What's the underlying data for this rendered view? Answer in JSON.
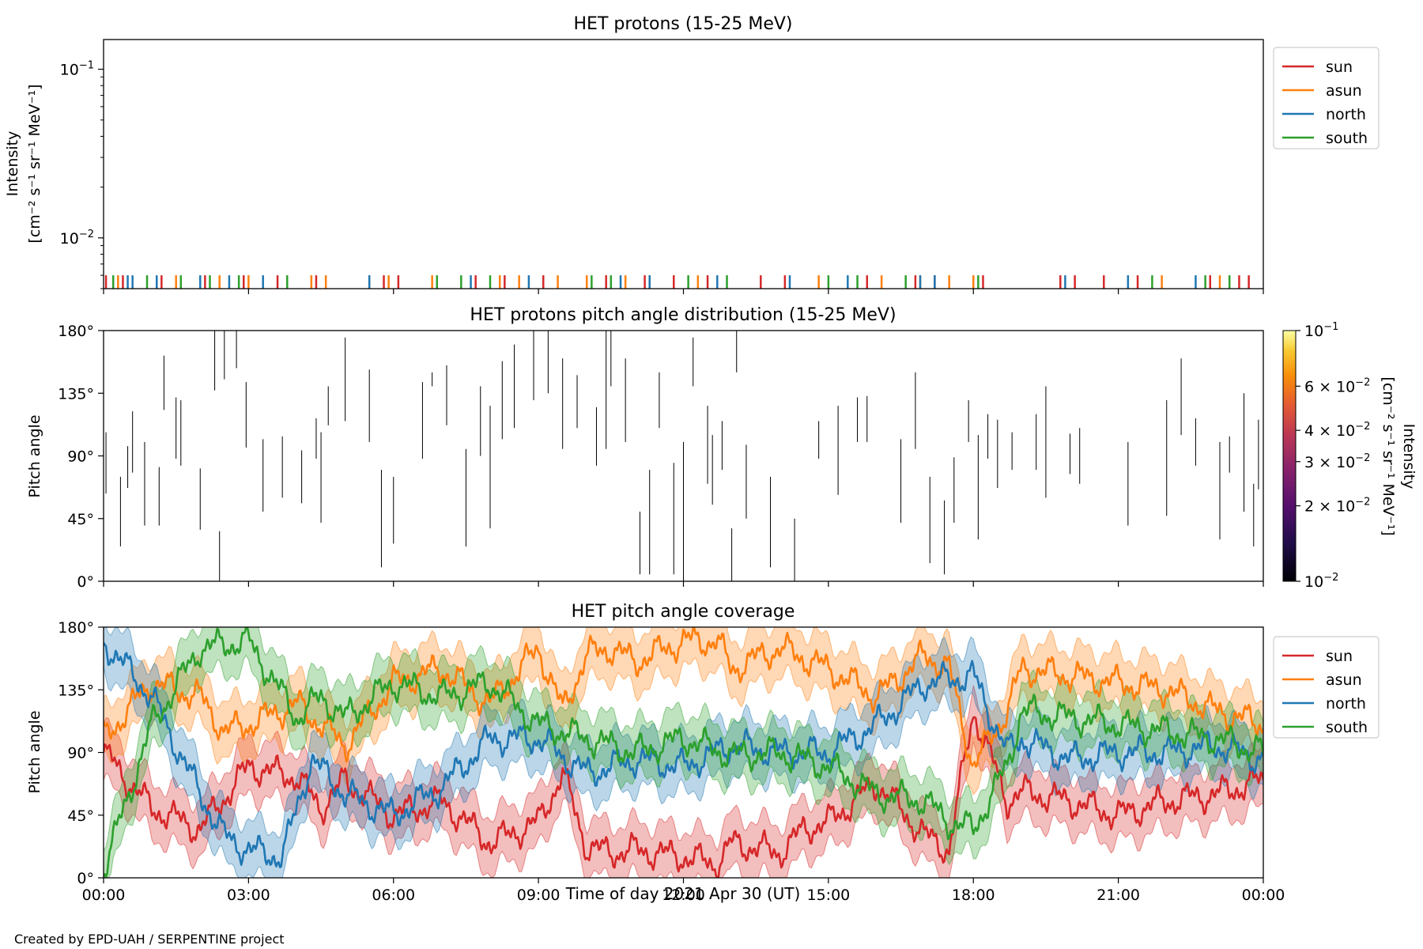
{
  "footer_credit": "Created by EPD-UAH / SERPENTINE project",
  "colors": {
    "sun": "#d62728",
    "asun": "#ff7f0e",
    "north": "#1f77b4",
    "south": "#2ca02c"
  },
  "chart_data": [
    {
      "type": "line",
      "title": "HET protons (15-25 MeV)",
      "ylabel_line1": "Intensity",
      "ylabel_line2": "[cm⁻² s⁻¹ sr⁻¹ MeV⁻¹]",
      "yscale": "log",
      "ylim": [
        0.005,
        0.15
      ],
      "yticks": [
        {
          "value": 0.1,
          "base": "10",
          "exp": "−1"
        },
        {
          "value": 0.01,
          "base": "10",
          "exp": "−2"
        }
      ],
      "xlim_hours": [
        0,
        24
      ],
      "legend": {
        "position": "outside-right",
        "entries": [
          "sun",
          "asun",
          "north",
          "south"
        ]
      },
      "series": [
        {
          "name": "sun",
          "value": 0.006,
          "x_hours": [
            0.05,
            0.4,
            1.2,
            2.1,
            2.9,
            3.6,
            4.4,
            5.8,
            6.1,
            7.7,
            8.3,
            9.1,
            10.4,
            11.2,
            11.8,
            12.5,
            13.6,
            14.1,
            15.8,
            16.8,
            17.2,
            18.2,
            19.8,
            20.1,
            20.7,
            21.4,
            22.9,
            23.5,
            23.7
          ]
        },
        {
          "name": "asun",
          "value": 0.006,
          "x_hours": [
            0.3,
            1.5,
            2.4,
            3.0,
            4.3,
            4.6,
            5.5,
            5.9,
            6.8,
            8.2,
            8.6,
            9.4,
            10.0,
            10.8,
            11.3,
            12.3,
            14.8,
            16.1,
            16.9,
            17.5,
            18.0,
            21.9,
            23.1
          ]
        },
        {
          "name": "north",
          "value": 0.006,
          "x_hours": [
            0.5,
            0.6,
            1.1,
            2.0,
            2.6,
            3.3,
            5.5,
            7.6,
            8.8,
            10.7,
            11.3,
            12.7,
            14.2,
            15.4,
            16.9,
            17.2,
            19.9,
            21.2,
            22.6
          ]
        },
        {
          "name": "south",
          "value": 0.006,
          "x_hours": [
            0.2,
            0.9,
            1.6,
            2.2,
            2.8,
            3.8,
            6.9,
            7.4,
            8.0,
            10.1,
            10.5,
            12.1,
            12.9,
            15.0,
            15.6,
            16.6,
            18.1,
            21.7,
            22.8,
            23.3
          ]
        }
      ]
    },
    {
      "type": "heatmap",
      "title": "HET protons pitch angle distribution (15-25 MeV)",
      "ylabel": "Pitch angle",
      "ylim": [
        0,
        180
      ],
      "yticks": [
        "0°",
        "45°",
        "90°",
        "135°",
        "180°"
      ],
      "xlim_hours": [
        0,
        24
      ],
      "colorbar": {
        "label_line1": "Intensity",
        "label_line2": "[cm⁻² s⁻¹ sr⁻¹ MeV⁻¹]",
        "scale": "log",
        "colormap": "inferno",
        "range": [
          0.01,
          0.1
        ],
        "ticks": [
          {
            "value": 0.1,
            "label": "10",
            "exp": "−1",
            "mantissa": ""
          },
          {
            "value": 0.06,
            "label": "6 × 10",
            "exp": "−2",
            "mantissa": "6"
          },
          {
            "value": 0.04,
            "label": "4 × 10",
            "exp": "−2",
            "mantissa": "4"
          },
          {
            "value": 0.03,
            "label": "3 × 10",
            "exp": "−2",
            "mantissa": "3"
          },
          {
            "value": 0.02,
            "label": "2 × 10",
            "exp": "−2",
            "mantissa": "2"
          },
          {
            "value": 0.01,
            "label": "10",
            "exp": "−2",
            "mantissa": ""
          }
        ]
      },
      "segments_note": "each segment: [hour, pitch_low, pitch_high]",
      "segments": [
        [
          0.05,
          63,
          107
        ],
        [
          0.35,
          25,
          75
        ],
        [
          0.5,
          67,
          97
        ],
        [
          0.6,
          78,
          122
        ],
        [
          0.85,
          40,
          100
        ],
        [
          1.15,
          40,
          82
        ],
        [
          1.25,
          123,
          162
        ],
        [
          1.5,
          88,
          132
        ],
        [
          1.6,
          83,
          130
        ],
        [
          2.0,
          37,
          81
        ],
        [
          2.3,
          137,
          180
        ],
        [
          2.4,
          0,
          36
        ],
        [
          2.5,
          145,
          180
        ],
        [
          2.75,
          153,
          180
        ],
        [
          2.95,
          96,
          143
        ],
        [
          3.3,
          50,
          102
        ],
        [
          3.7,
          60,
          104
        ],
        [
          4.1,
          56,
          94
        ],
        [
          4.4,
          88,
          117
        ],
        [
          4.5,
          42,
          107
        ],
        [
          4.65,
          112,
          140
        ],
        [
          5.0,
          115,
          175
        ],
        [
          5.5,
          100,
          152
        ],
        [
          5.75,
          10,
          80
        ],
        [
          6.0,
          27,
          75
        ],
        [
          6.6,
          88,
          143
        ],
        [
          6.8,
          140,
          150
        ],
        [
          7.1,
          112,
          155
        ],
        [
          7.5,
          25,
          95
        ],
        [
          7.8,
          90,
          140
        ],
        [
          8.0,
          38,
          126
        ],
        [
          8.25,
          102,
          158
        ],
        [
          8.5,
          110,
          170
        ],
        [
          8.9,
          130,
          180
        ],
        [
          9.2,
          135,
          180
        ],
        [
          9.5,
          95,
          160
        ],
        [
          9.8,
          110,
          148
        ],
        [
          10.2,
          83,
          125
        ],
        [
          10.4,
          95,
          180
        ],
        [
          10.5,
          140,
          180
        ],
        [
          10.8,
          100,
          160
        ],
        [
          11.1,
          5,
          50
        ],
        [
          11.3,
          5,
          80
        ],
        [
          11.5,
          110,
          150
        ],
        [
          11.8,
          5,
          85
        ],
        [
          12.0,
          0,
          100
        ],
        [
          12.2,
          140,
          175
        ],
        [
          12.5,
          70,
          126
        ],
        [
          12.6,
          55,
          105
        ],
        [
          12.8,
          80,
          115
        ],
        [
          13.0,
          0,
          38
        ],
        [
          13.1,
          150,
          180
        ],
        [
          13.3,
          45,
          98
        ],
        [
          13.8,
          10,
          75
        ],
        [
          14.3,
          0,
          45
        ],
        [
          14.8,
          88,
          115
        ],
        [
          15.2,
          62,
          126
        ],
        [
          15.6,
          100,
          132
        ],
        [
          15.8,
          100,
          133
        ],
        [
          16.5,
          42,
          102
        ],
        [
          16.8,
          95,
          150
        ],
        [
          17.1,
          13,
          75
        ],
        [
          17.4,
          5,
          58
        ],
        [
          17.6,
          42,
          89
        ],
        [
          17.9,
          100,
          130
        ],
        [
          18.1,
          30,
          105
        ],
        [
          18.3,
          88,
          120
        ],
        [
          18.5,
          67,
          116
        ],
        [
          18.8,
          80,
          107
        ],
        [
          19.3,
          80,
          120
        ],
        [
          19.5,
          60,
          140
        ],
        [
          20.0,
          77,
          106
        ],
        [
          20.2,
          70,
          110
        ],
        [
          21.2,
          40,
          100
        ],
        [
          22.0,
          47,
          130
        ],
        [
          22.3,
          105,
          160
        ],
        [
          22.6,
          83,
          117
        ],
        [
          23.1,
          30,
          100
        ],
        [
          23.3,
          78,
          104
        ],
        [
          23.6,
          50,
          135
        ],
        [
          23.8,
          25,
          70
        ],
        [
          23.9,
          66,
          116
        ],
        [
          24.0,
          60,
          125
        ]
      ]
    },
    {
      "type": "line",
      "title": "HET pitch angle coverage",
      "ylabel": "Pitch angle",
      "xlabel": "Time of day 2021 Apr 30 (UT)",
      "ylim": [
        0,
        180
      ],
      "yticks": [
        "0°",
        "45°",
        "90°",
        "135°",
        "180°"
      ],
      "xlim_hours": [
        0,
        24
      ],
      "xticks": [
        "00:00",
        "03:00",
        "06:00",
        "09:00",
        "12:00",
        "15:00",
        "18:00",
        "21:00",
        "00:00"
      ],
      "legend": {
        "position": "outside-right",
        "entries": [
          "sun",
          "asun",
          "north",
          "south"
        ]
      },
      "band_halfwidth_deg": 20,
      "series": [
        {
          "name": "sun",
          "x_hours": [
            0,
            1,
            2,
            3,
            4,
            4.5,
            5,
            6,
            7,
            8,
            9,
            9.5,
            10,
            10.5,
            11,
            12,
            12.7,
            13,
            14,
            14.5,
            15,
            16,
            17,
            17.5,
            18,
            18.7,
            19,
            20,
            21,
            22,
            23,
            24
          ],
          "values": [
            90,
            50,
            35,
            80,
            72,
            50,
            70,
            45,
            55,
            25,
            40,
            75,
            22,
            18,
            20,
            15,
            10,
            25,
            18,
            35,
            40,
            68,
            30,
            20,
            120,
            55,
            62,
            55,
            45,
            55,
            60,
            70
          ]
        },
        {
          "name": "asun",
          "x_hours": [
            0,
            1,
            2,
            2.5,
            3,
            4,
            5,
            6,
            7,
            8,
            9,
            9.5,
            10,
            10.5,
            11,
            12,
            12.7,
            13,
            14,
            15,
            16,
            17,
            17.5,
            18,
            18.7,
            19,
            20,
            21,
            22,
            23,
            24
          ],
          "values": [
            100,
            140,
            130,
            105,
            110,
            125,
            95,
            140,
            150,
            125,
            165,
            120,
            160,
            165,
            155,
            170,
            170,
            150,
            165,
            150,
            130,
            160,
            150,
            80,
            120,
            150,
            145,
            140,
            135,
            120,
            110
          ]
        },
        {
          "name": "north",
          "x_hours": [
            0,
            1,
            2,
            2.5,
            3,
            3.7,
            4.3,
            5,
            6,
            7,
            8,
            9,
            10,
            11,
            12,
            13,
            14,
            15,
            16,
            17,
            18,
            18.7,
            19,
            20,
            21,
            22,
            23,
            24
          ],
          "values": [
            170,
            130,
            60,
            30,
            20,
            15,
            85,
            60,
            45,
            65,
            100,
            100,
            75,
            85,
            80,
            95,
            90,
            90,
            110,
            140,
            145,
            90,
            100,
            85,
            90,
            90,
            95,
            85
          ]
        },
        {
          "name": "south",
          "x_hours": [
            0,
            1,
            2,
            3,
            4,
            4.5,
            5,
            6,
            7,
            8,
            9,
            10,
            11,
            12,
            13,
            14,
            15,
            16,
            17,
            17.5,
            18,
            18.7,
            19,
            20,
            21,
            22,
            23,
            24
          ],
          "values": [
            5,
            110,
            165,
            170,
            115,
            130,
            115,
            140,
            130,
            140,
            110,
            100,
            90,
            100,
            88,
            90,
            80,
            60,
            55,
            40,
            35,
            80,
            120,
            115,
            110,
            105,
            100,
            90
          ]
        }
      ]
    }
  ]
}
